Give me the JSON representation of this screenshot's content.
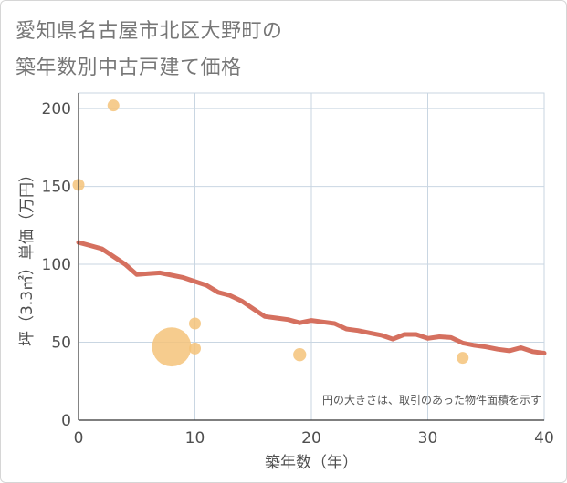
{
  "chart_data": {
    "type": "scatter",
    "title_lines": [
      "愛知県名古屋市北区大野町の",
      "築年数別中古戸建て価格"
    ],
    "xlabel": "築年数（年）",
    "ylabel": "坪（3.3㎡）単価（万円）",
    "xlim": [
      0,
      40
    ],
    "ylim": [
      0,
      210
    ],
    "xticks": [
      0,
      10,
      20,
      30,
      40
    ],
    "yticks": [
      0,
      50,
      100,
      150,
      200
    ],
    "grid": true,
    "note": "円の大きさは、取引のあった物件面積を示す",
    "colors": {
      "bubble": "#f5c37a",
      "line": "#d5705f",
      "grid": "#c9d6e2",
      "axis": "#333333"
    },
    "bubbles": [
      {
        "x": 0,
        "y": 151,
        "size": 1
      },
      {
        "x": 3,
        "y": 202,
        "size": 1
      },
      {
        "x": 8,
        "y": 47,
        "size": 3.3
      },
      {
        "x": 10,
        "y": 62,
        "size": 1
      },
      {
        "x": 10,
        "y": 46,
        "size": 1
      },
      {
        "x": 19,
        "y": 42,
        "size": 1.1
      },
      {
        "x": 33,
        "y": 40,
        "size": 1
      }
    ],
    "trend": {
      "x": [
        0,
        1,
        2,
        3,
        4,
        5,
        6,
        7,
        8,
        9,
        10,
        11,
        12,
        13,
        14,
        15,
        16,
        17,
        18,
        19,
        20,
        21,
        22,
        23,
        24,
        25,
        26,
        27,
        28,
        29,
        30,
        31,
        32,
        33,
        34,
        35,
        36,
        37,
        38,
        39,
        40
      ],
      "y": [
        114,
        112,
        110,
        105,
        100,
        93.5,
        94,
        94.5,
        93,
        91.5,
        89,
        86.5,
        82,
        80,
        76.5,
        71.5,
        66.5,
        65.5,
        64.5,
        62.5,
        64,
        63,
        62,
        58.5,
        57.5,
        56,
        54.5,
        52,
        55,
        55,
        52.5,
        53.5,
        53,
        49.5,
        48,
        47,
        45.5,
        44.5,
        46.5,
        44,
        43
      ]
    }
  }
}
